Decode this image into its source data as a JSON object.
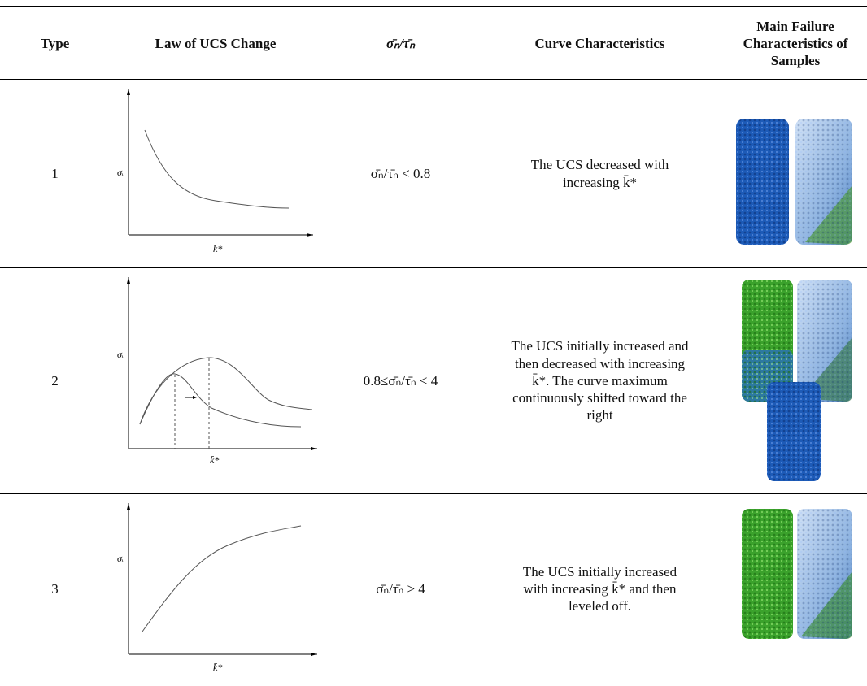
{
  "table": {
    "header": [
      "Type",
      "Law of UCS Change",
      "σ̄ₙ/τ̄ₙ",
      "Curve Characteristics",
      "Main Failure Characteristics of Samples"
    ],
    "rows": [
      {
        "type": "1",
        "y_label": "σᵤ",
        "x_label": "k̄*",
        "condition": "σ̄ₙ/τ̄ₙ < 0.8",
        "characteristics": "The UCS decreased with increasing k̄*"
      },
      {
        "type": "2",
        "y_label": "σᵤ",
        "x_label": "k̄*",
        "condition": "0.8≤σ̄ₙ/τ̄ₙ < 4",
        "characteristics": "The UCS initially increased and then decreased with increasing k̄*. The curve maximum continuously shifted toward the right"
      },
      {
        "type": "3",
        "y_label": "σᵤ",
        "x_label": "k̄*",
        "condition": "σ̄ₙ/τ̄ₙ ≥ 4",
        "characteristics": "The UCS initially increased with increasing k̄* and then leveled off."
      }
    ]
  }
}
